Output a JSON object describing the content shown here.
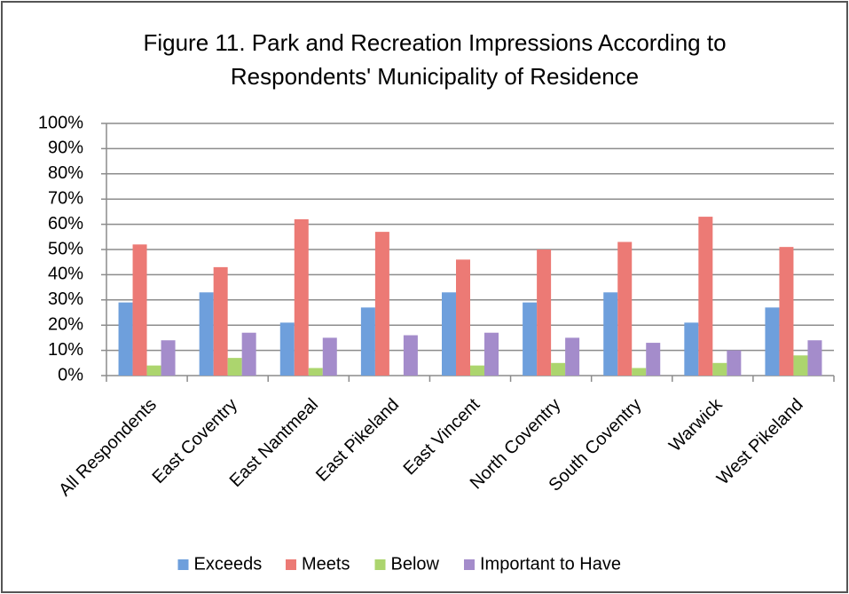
{
  "chart_data": {
    "type": "bar",
    "title": [
      "Figure 11. Park and Recreation Impressions According to",
      "Respondents' Municipality of Residence"
    ],
    "categories": [
      "All Respondents",
      "East Coventry",
      "East Nantmeal",
      "East Pikeland",
      "East Vincent",
      "North Coventry",
      "South Coventry",
      "Warwick",
      "West Pikeland"
    ],
    "series": [
      {
        "name": "Exceeds",
        "color": "#6e9fdc",
        "values": [
          29,
          33,
          21,
          27,
          33,
          29,
          33,
          21,
          27
        ]
      },
      {
        "name": "Meets",
        "color": "#ec7a75",
        "values": [
          52,
          43,
          62,
          57,
          46,
          50,
          53,
          63,
          51
        ]
      },
      {
        "name": "Below",
        "color": "#acd56e",
        "values": [
          4,
          7,
          3,
          0,
          4,
          5,
          3,
          5,
          8
        ]
      },
      {
        "name": "Important to Have",
        "color": "#a48ccb",
        "values": [
          14,
          17,
          15,
          16,
          17,
          15,
          13,
          10,
          14
        ]
      }
    ],
    "ylim": [
      0,
      100
    ],
    "yticks": [
      {
        "value": 0,
        "label": "0%"
      },
      {
        "value": 10,
        "label": "10%"
      },
      {
        "value": 20,
        "label": "20%"
      },
      {
        "value": 30,
        "label": "30%"
      },
      {
        "value": 40,
        "label": "40%"
      },
      {
        "value": 50,
        "label": "50%"
      },
      {
        "value": 60,
        "label": "60%"
      },
      {
        "value": 70,
        "label": "70%"
      },
      {
        "value": 80,
        "label": "80%"
      },
      {
        "value": 90,
        "label": "90%"
      },
      {
        "value": 100,
        "label": "100%"
      }
    ],
    "grid": true,
    "legend": "bottom"
  }
}
